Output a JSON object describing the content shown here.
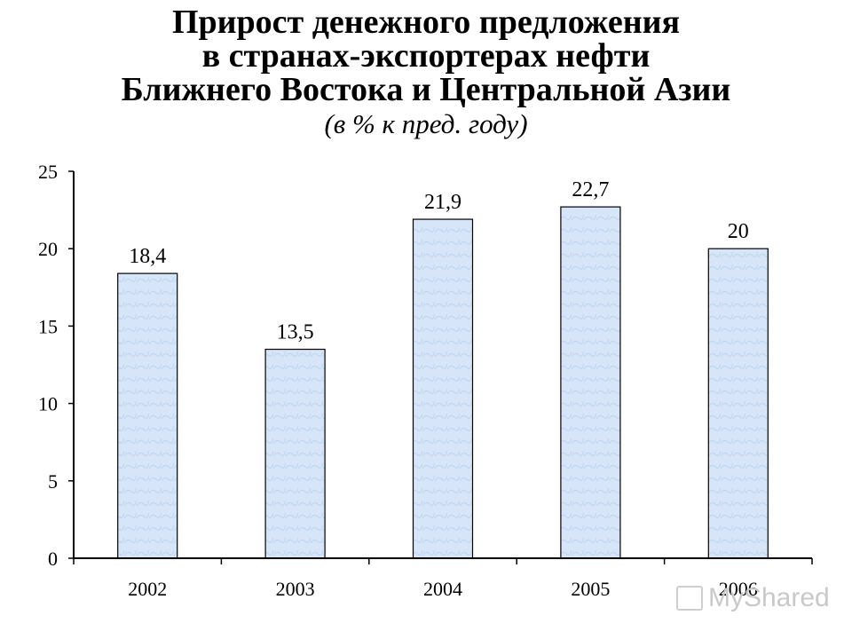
{
  "title": {
    "lines": [
      "Прирост денежного предложения",
      "в странах-экспортерах нефти",
      "Ближнего Востока и Центральной Азии"
    ],
    "subtitle": "(в % к пред. году)"
  },
  "watermark": "MyShared",
  "colors": {
    "bar_fill": "#d6e6f8",
    "bar_stroke": "#000000",
    "axis": "#000000"
  },
  "chart_data": {
    "type": "bar",
    "categories": [
      "2002",
      "2003",
      "2004",
      "2005",
      "2006"
    ],
    "values": [
      18.4,
      13.5,
      21.9,
      22.7,
      20
    ],
    "value_labels": [
      "18,4",
      "13,5",
      "21,9",
      "22,7",
      "20"
    ],
    "title": "Прирост денежного предложения в странах-экспортерах нефти Ближнего Востока и Центральной Азии",
    "subtitle": "(в % к пред. году)",
    "xlabel": "",
    "ylabel": "",
    "ylim": [
      0,
      25
    ],
    "yticks": [
      0,
      5,
      10,
      15,
      20,
      25
    ],
    "grid": false,
    "legend": "none"
  }
}
